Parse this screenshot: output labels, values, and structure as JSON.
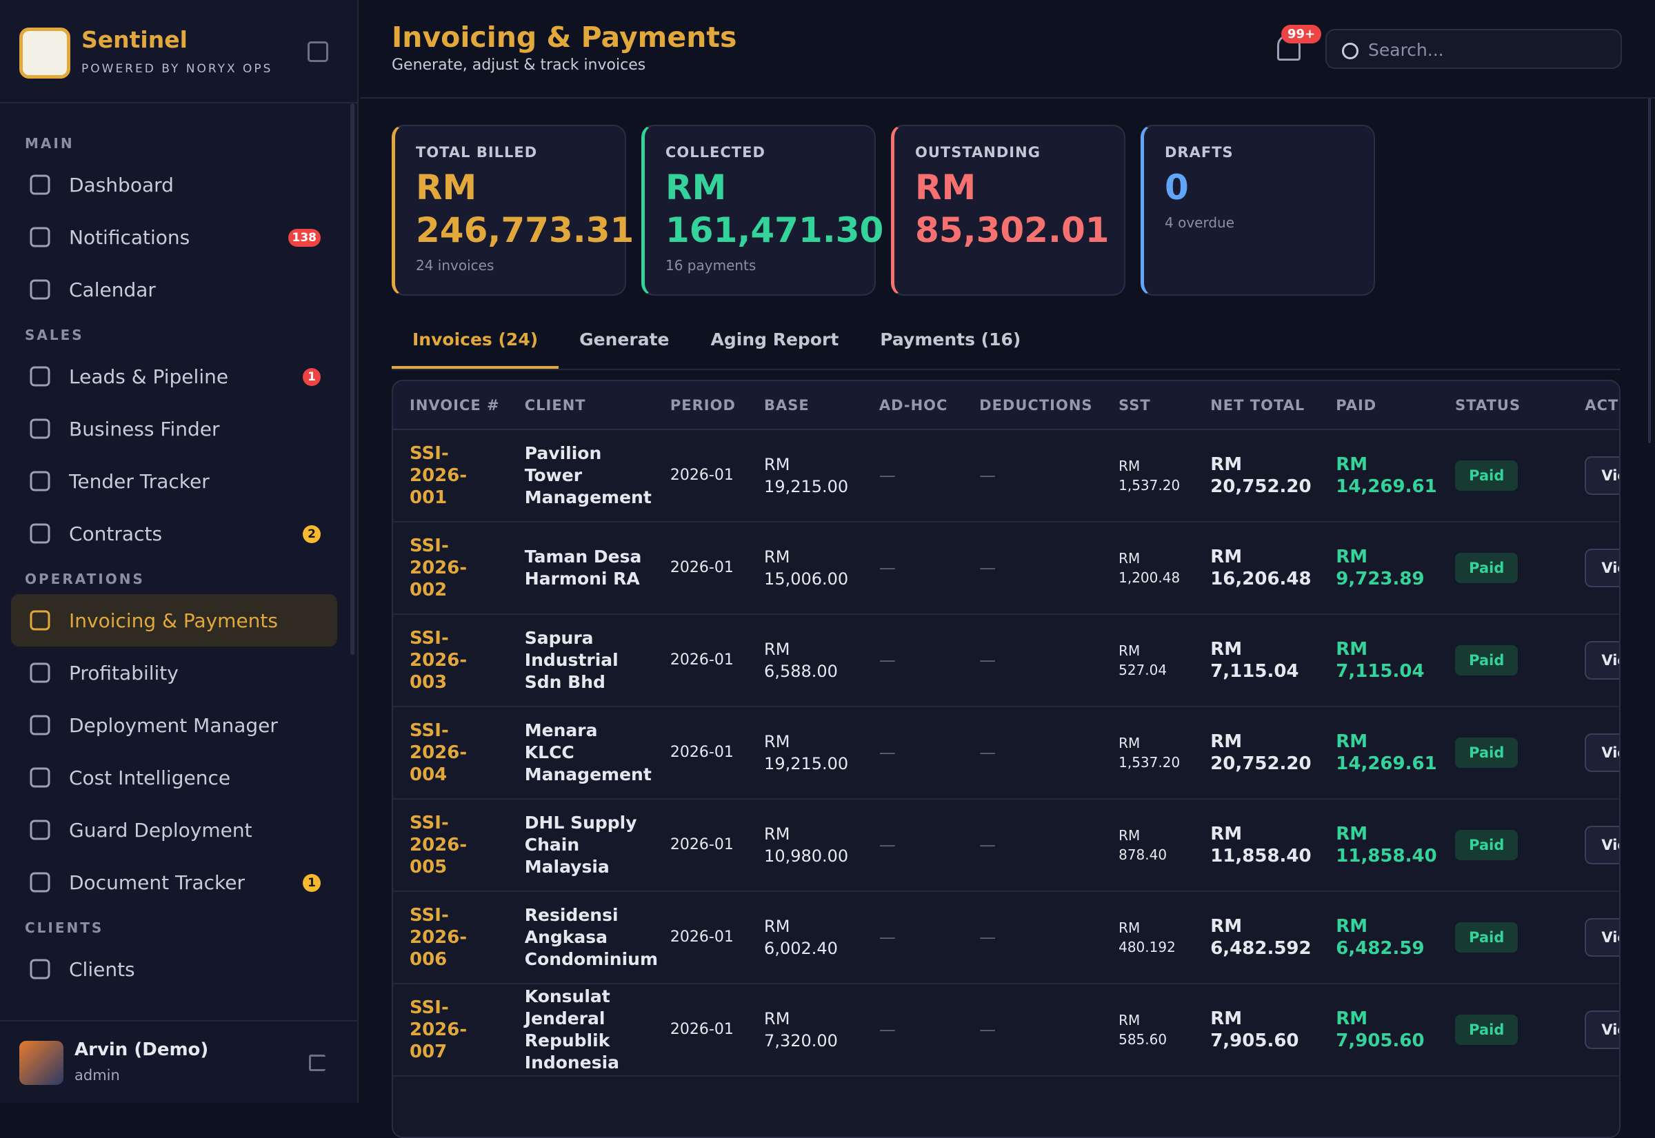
{
  "sidebar": {
    "brand": "Sentinel",
    "tagline": "POWERED BY NORYX OPS",
    "sections": [
      {
        "label": "MAIN",
        "items": [
          {
            "label": "Dashboard"
          },
          {
            "label": "Notifications",
            "badge": 138
          },
          {
            "label": "Calendar"
          }
        ]
      },
      {
        "label": "SALES",
        "items": [
          {
            "label": "Leads & Pipeline",
            "badge": 1
          },
          {
            "label": "Business Finder"
          },
          {
            "label": "Tender Tracker"
          },
          {
            "label": "Contracts",
            "badge": 2
          }
        ]
      },
      {
        "label": "OPERATIONS",
        "items": [
          {
            "label": "Invoicing & Payments",
            "active": true
          },
          {
            "label": "Profitability"
          },
          {
            "label": "Deployment Manager"
          },
          {
            "label": "Cost Intelligence"
          },
          {
            "label": "Guard Deployment"
          },
          {
            "label": "Document Tracker",
            "badge": 1
          }
        ]
      },
      {
        "label": "CLIENTS",
        "items": [
          {
            "label": "Clients"
          }
        ]
      }
    ],
    "user": {
      "name": "Arvin (Demo)",
      "role": "admin"
    }
  },
  "header": {
    "title": "Invoicing & Payments",
    "subtitle": "Generate, adjust & track invoices",
    "notification_badge": "99+",
    "search_placeholder": "Search..."
  },
  "stats": [
    {
      "label": "TOTAL BILLED",
      "value": "RM 246,773.31",
      "note": "24 invoices",
      "color": "#e3a83b"
    },
    {
      "label": "COLLECTED",
      "value": "RM 161,471.30",
      "note": "16 payments",
      "color": "#34d399"
    },
    {
      "label": "OUTSTANDING",
      "value": "RM 85,302.01",
      "color": "#f87171"
    },
    {
      "label": "DRAFTS",
      "value": "0",
      "note": "4 overdue",
      "color": "#60a5fa"
    }
  ],
  "tabs": {
    "items": [
      "Invoices (24)",
      "Generate",
      "Aging Report",
      "Payments (16)"
    ],
    "active": 0
  },
  "table": {
    "columns": [
      "INVOICE #",
      "CLIENT",
      "PERIOD",
      "BASE",
      "AD-HOC",
      "DEDUCTIONS",
      "SST",
      "NET TOTAL",
      "PAID",
      "STATUS",
      "ACTIONS"
    ],
    "rows": [
      [
        "SSI-2026-001",
        "Pavilion Tower Management",
        "2026-01",
        "RM 19,215.00",
        "—",
        "—",
        "RM 1,537.20",
        "RM 20,752.20",
        "RM 14,269.61",
        "Paid",
        "View"
      ],
      [
        "SSI-2026-002",
        "Taman Desa Harmoni RA",
        "2026-01",
        "RM 15,006.00",
        "—",
        "—",
        "RM 1,200.48",
        "RM 16,206.48",
        "RM 9,723.89",
        "Paid",
        "View"
      ],
      [
        "SSI-2026-003",
        "Sapura Industrial Sdn Bhd",
        "2026-01",
        "RM 6,588.00",
        "—",
        "—",
        "RM 527.04",
        "RM 7,115.04",
        "RM 7,115.04",
        "Paid",
        "View"
      ],
      [
        "SSI-2026-004",
        "Menara KLCC Management",
        "2026-01",
        "RM 19,215.00",
        "—",
        "—",
        "RM 1,537.20",
        "RM 20,752.20",
        "RM 14,269.61",
        "Paid",
        "View"
      ],
      [
        "SSI-2026-005",
        "DHL Supply Chain Malaysia",
        "2026-01",
        "RM 10,980.00",
        "—",
        "—",
        "RM 878.40",
        "RM 11,858.40",
        "RM 11,858.40",
        "Paid",
        "View"
      ],
      [
        "SSI-2026-006",
        "Residensi Angkasa Condominium",
        "2026-01",
        "RM 6,002.40",
        "—",
        "—",
        "RM 480.192",
        "RM 6,482.592",
        "RM 6,482.59",
        "Paid",
        "View"
      ],
      [
        "SSI-2026-007",
        "Konsulat Jenderal Republik Indonesia",
        "2026-01",
        "RM 7,320.00",
        "—",
        "—",
        "RM 585.60",
        "RM 7,905.60",
        "RM 7,905.60",
        "Paid",
        "View"
      ]
    ]
  }
}
